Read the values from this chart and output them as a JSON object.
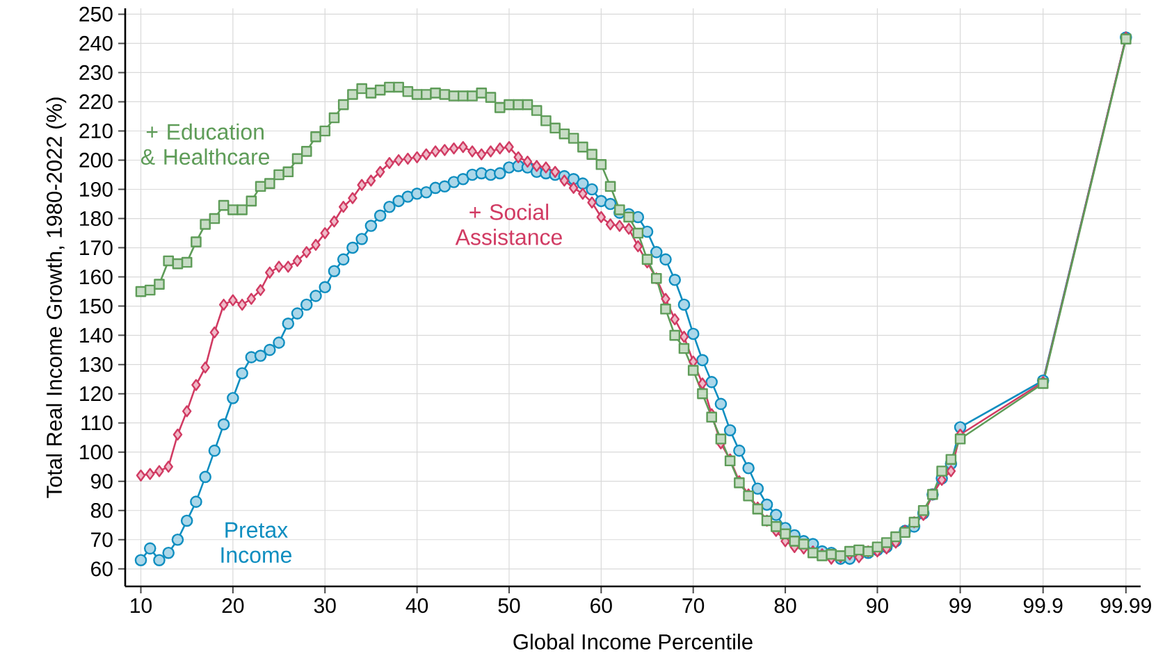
{
  "chart_data": {
    "type": "line",
    "xlabel": "Global Income Percentile",
    "ylabel": "Total Real Income Growth, 1980-2022 (%)",
    "categories": [
      "10",
      null,
      null,
      null,
      null,
      null,
      null,
      null,
      null,
      null,
      "20",
      null,
      null,
      null,
      null,
      null,
      null,
      null,
      null,
      null,
      "30",
      null,
      null,
      null,
      null,
      null,
      null,
      null,
      null,
      null,
      "40",
      null,
      null,
      null,
      null,
      null,
      null,
      null,
      null,
      null,
      "50",
      null,
      null,
      null,
      null,
      null,
      null,
      null,
      null,
      null,
      "60",
      null,
      null,
      null,
      null,
      null,
      null,
      null,
      null,
      null,
      "70",
      null,
      null,
      null,
      null,
      null,
      null,
      null,
      null,
      null,
      "80",
      null,
      null,
      null,
      null,
      null,
      null,
      null,
      null,
      null,
      "90",
      null,
      null,
      null,
      null,
      null,
      null,
      null,
      null,
      "99",
      null,
      null,
      null,
      null,
      null,
      null,
      null,
      null,
      "99.9",
      null,
      null,
      null,
      null,
      null,
      null,
      null,
      null,
      "99.99"
    ],
    "series": [
      {
        "name": "Pretax Income",
        "color": "#0f8ec0",
        "marker": "circle",
        "values": [
          63,
          67,
          63,
          65.5,
          70,
          76.5,
          83,
          91.5,
          100.5,
          109.5,
          118.5,
          127,
          132.5,
          133,
          135,
          137.5,
          144,
          147.5,
          150.5,
          153.5,
          156.5,
          162,
          166,
          170,
          173,
          177.5,
          181,
          184,
          186,
          187.5,
          188.5,
          189,
          190.5,
          191,
          192.5,
          193.5,
          195,
          195.5,
          195,
          195.5,
          197.5,
          198,
          197.5,
          196,
          195.5,
          195,
          194.5,
          193.5,
          192,
          190,
          186,
          185,
          182,
          181.5,
          180.5,
          175.5,
          168.5,
          166,
          159,
          150.5,
          140.5,
          131.5,
          124,
          116.5,
          107.5,
          100.5,
          94.5,
          87.5,
          82,
          78.5,
          74,
          71.5,
          69.5,
          68.5,
          66,
          65.5,
          63.5,
          63.5,
          65,
          65.5,
          66.5,
          67.5,
          69.5,
          73,
          74.5,
          79,
          85.5,
          91,
          96,
          108.5,
          null,
          null,
          null,
          null,
          null,
          null,
          null,
          null,
          124.5,
          null,
          null,
          null,
          null,
          null,
          null,
          null,
          null,
          242
        ]
      },
      {
        "name": "+ Social Assistance",
        "color": "#d13b63",
        "marker": "diamond",
        "values": [
          92,
          92.5,
          93.5,
          95,
          106,
          114,
          123,
          129,
          141,
          150.5,
          152,
          150.5,
          152.5,
          155.5,
          161.5,
          163.5,
          163.5,
          165.5,
          168.5,
          171,
          175,
          179,
          184,
          187,
          191.5,
          193,
          196,
          199,
          200,
          200.5,
          201,
          202,
          203,
          203.5,
          204,
          204.5,
          203,
          202,
          203,
          204,
          204.5,
          201,
          199.5,
          198,
          197.5,
          196,
          193,
          190.5,
          188.5,
          185.5,
          180.5,
          178,
          177.5,
          176.5,
          170.5,
          165,
          159.5,
          152.5,
          145.5,
          139.5,
          131,
          123.5,
          113,
          103,
          97.5,
          90,
          85.5,
          81,
          76.5,
          73,
          69.5,
          67.5,
          67,
          66,
          65,
          63.5,
          64,
          65,
          64,
          66,
          66,
          67,
          69,
          73,
          76,
          78.5,
          85.5,
          90.5,
          93.5,
          106,
          null,
          null,
          null,
          null,
          null,
          null,
          null,
          null,
          124,
          null,
          null,
          null,
          null,
          null,
          null,
          null,
          null,
          242
        ]
      },
      {
        "name": "+ Education & Healthcare",
        "color": "#5e9c58",
        "marker": "square",
        "values": [
          155,
          155.5,
          157.5,
          165.5,
          164.5,
          165,
          172,
          178,
          180,
          184.5,
          183,
          183,
          186,
          191,
          192,
          195,
          196,
          200.5,
          203,
          208,
          210,
          214.5,
          219,
          222.5,
          224.5,
          223,
          224,
          225,
          225,
          223.5,
          222.5,
          222.5,
          223,
          222.5,
          222,
          222,
          222,
          223,
          221.5,
          218,
          219,
          219,
          219,
          217,
          213.5,
          211,
          209,
          207.5,
          204.5,
          202,
          198.5,
          191,
          183,
          180.5,
          175,
          166,
          159.5,
          149,
          140,
          135.5,
          128,
          120,
          112,
          104.5,
          97,
          89.5,
          85,
          80.5,
          76.5,
          74.5,
          72,
          69.5,
          68.5,
          65.5,
          64.5,
          65,
          64.5,
          66,
          66.5,
          66,
          67.5,
          69,
          71,
          72.5,
          76,
          80,
          85.5,
          93.5,
          97.5,
          104.5,
          null,
          null,
          null,
          null,
          null,
          null,
          null,
          null,
          123.5,
          null,
          null,
          null,
          null,
          null,
          null,
          null,
          null,
          241.5
        ]
      }
    ],
    "ylim": [
      54,
      252
    ],
    "yticks": [
      60,
      70,
      80,
      90,
      100,
      110,
      120,
      130,
      140,
      150,
      160,
      170,
      180,
      190,
      200,
      210,
      220,
      230,
      240,
      250
    ],
    "grid": true,
    "legend": false,
    "line_style": "solid"
  }
}
